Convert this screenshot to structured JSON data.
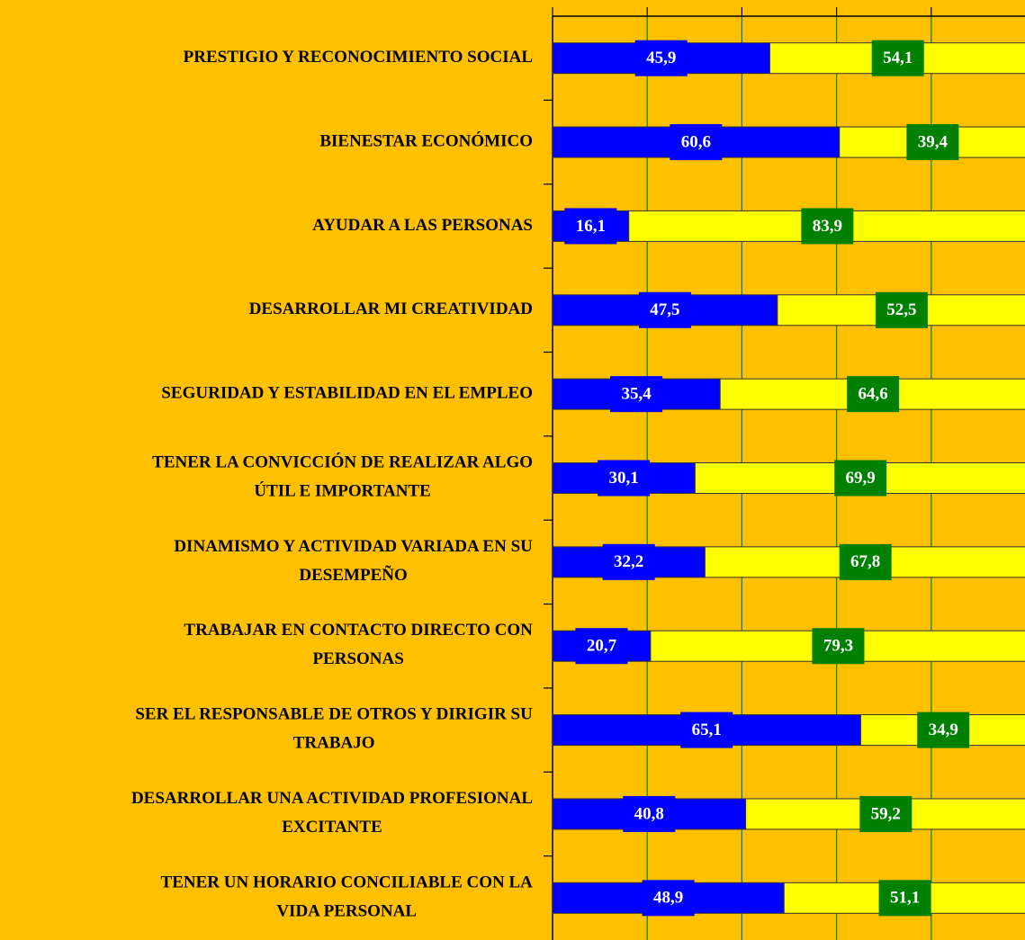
{
  "chart_data": {
    "type": "stacked-bar-horizontal",
    "categories": [
      "PRESTIGIO Y RECONOCIMIENTO SOCIAL",
      "BIENESTAR ECONÓMICO",
      "AYUDAR A LAS PERSONAS",
      "DESARROLLAR MI CREATIVIDAD",
      "SEGURIDAD Y ESTABILIDAD EN EL EMPLEO",
      "TENER LA CONVICCIÓN DE REALIZAR ALGO\nÚTIL E IMPORTANTE",
      "DINAMISMO Y ACTIVIDAD VARIADA EN SU\nDESEMPEÑO",
      "TRABAJAR EN CONTACTO DIRECTO CON\nPERSONAS",
      "SER EL RESPONSABLE DE OTROS Y DIRIGIR SU\nTRABAJO",
      "DESARROLLAR UNA ACTIVIDAD PROFESIONAL\nEXCITANTE",
      "TENER UN HORARIO CONCILIABLE CON LA\nVIDA PERSONAL"
    ],
    "series": [
      {
        "color": "#0000ff",
        "label_color": "#0000ff",
        "values": [
          45.9,
          60.6,
          16.1,
          47.5,
          35.4,
          30.1,
          32.2,
          20.7,
          65.1,
          40.8,
          48.9
        ],
        "value_labels": [
          "45,9",
          "60,6",
          "16,1",
          "47,5",
          "35,4",
          "30,1",
          "32,2",
          "20,7",
          "65,1",
          "40,8",
          "48,9"
        ]
      },
      {
        "color": "#ffff00",
        "label_color": "#008000",
        "values": [
          54.1,
          39.4,
          83.9,
          52.5,
          64.6,
          69.9,
          67.8,
          79.3,
          34.9,
          59.2,
          51.1
        ],
        "value_labels": [
          "54,1",
          "39,4",
          "83,9",
          "52,5",
          "64,6",
          "69,9",
          "67,8",
          "79,3",
          "34,9",
          "59,2",
          "51,1"
        ]
      }
    ],
    "xlim": [
      0,
      100
    ],
    "xticks": [
      0,
      20,
      40,
      60,
      80,
      100
    ],
    "grid": true,
    "grid_color": "#008000",
    "background": "#ffc000"
  }
}
